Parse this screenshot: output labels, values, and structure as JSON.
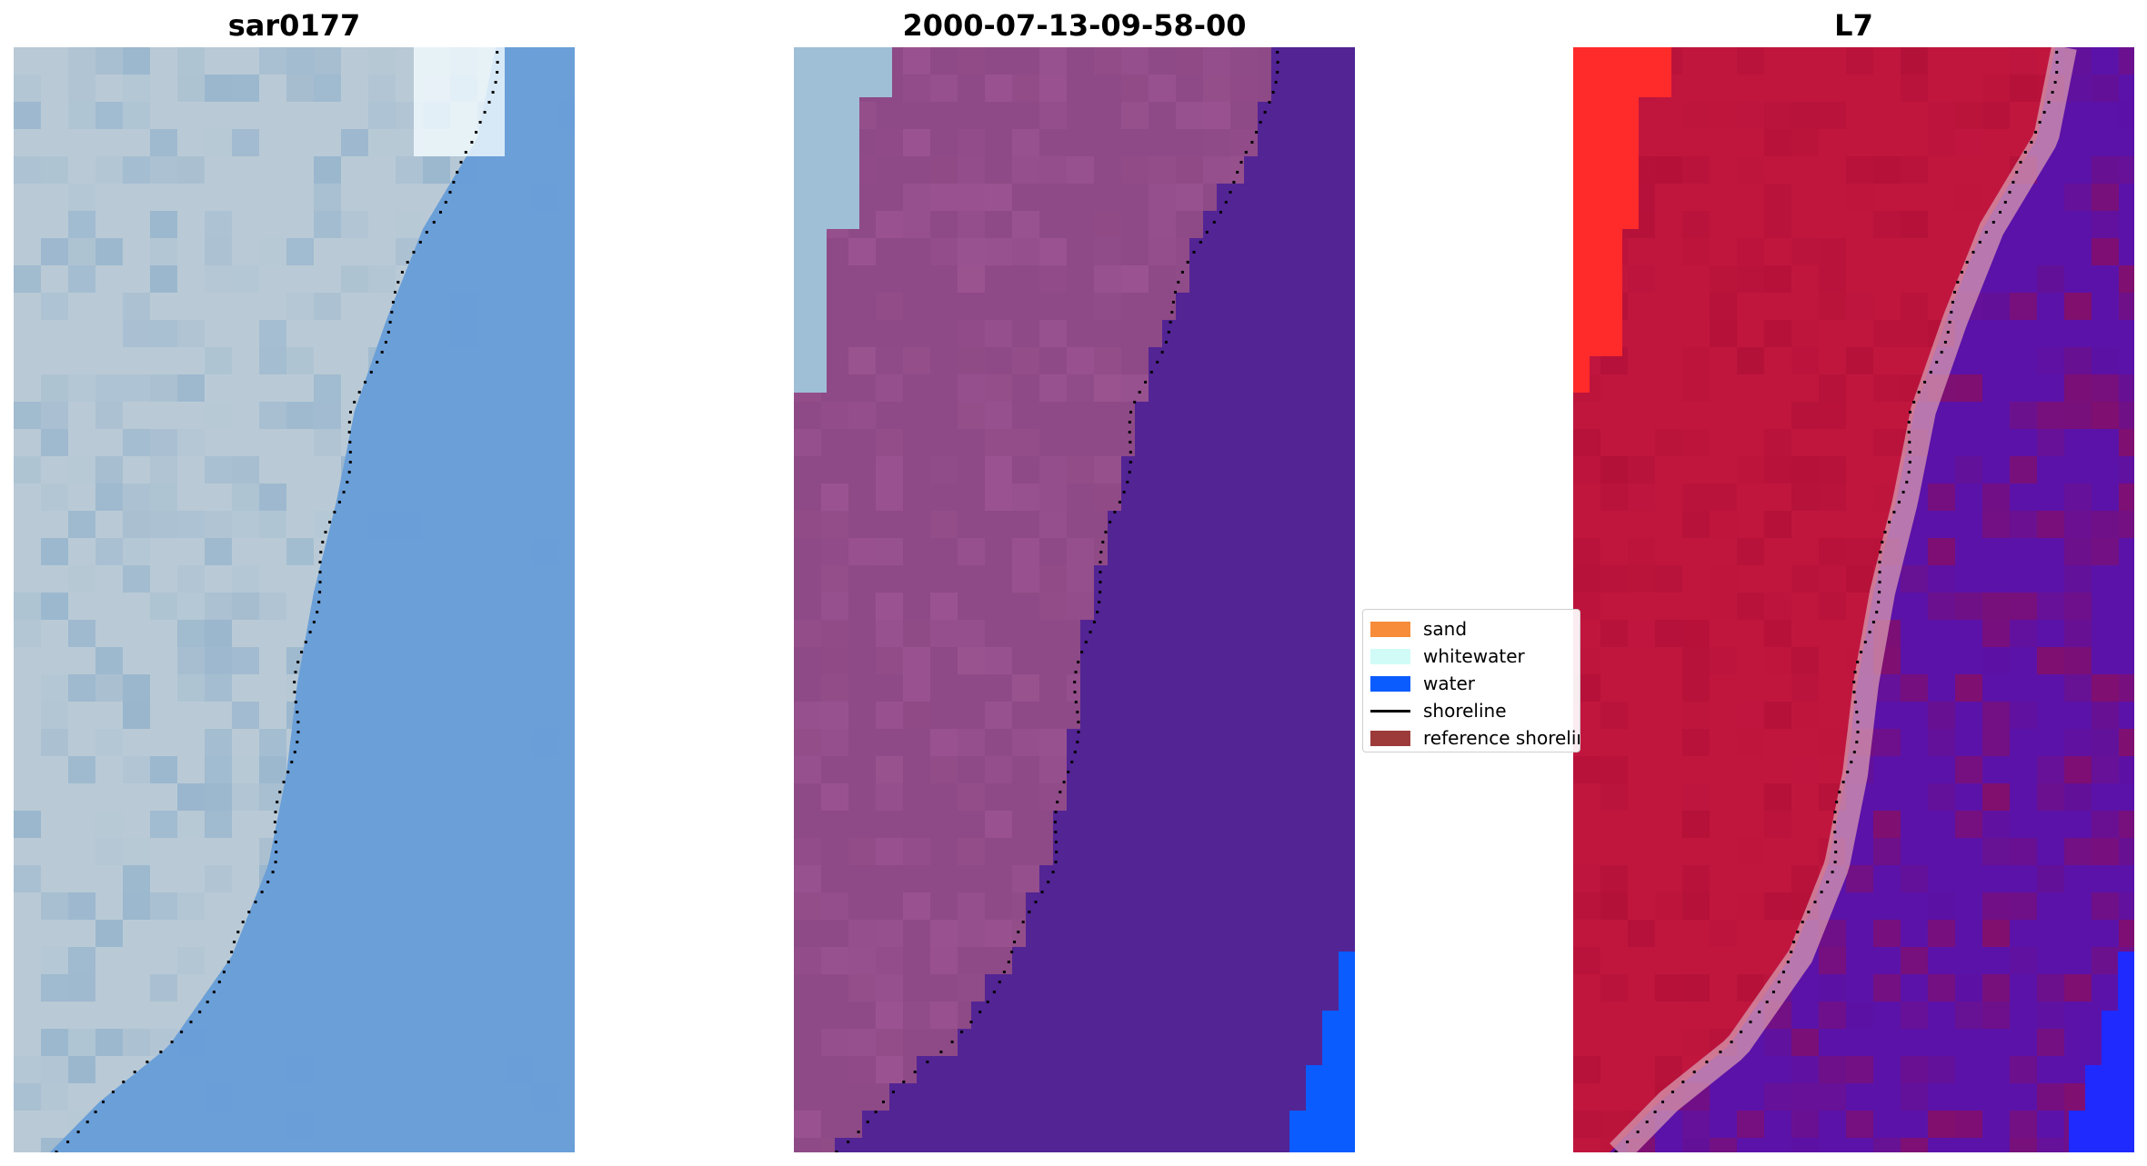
{
  "panels": [
    {
      "title": "sar0177"
    },
    {
      "title": "2000-07-13-09-58-00"
    },
    {
      "title": "L7"
    }
  ],
  "legend": {
    "items": [
      {
        "label": "sand",
        "kind": "patch",
        "color": "#f78c3a"
      },
      {
        "label": "whitewater",
        "kind": "patch",
        "color": "#d0fbf6"
      },
      {
        "label": "water",
        "kind": "patch",
        "color": "#0a5cff"
      },
      {
        "label": "shoreline",
        "kind": "line",
        "color": "#000000"
      },
      {
        "label": "reference shoreline",
        "kind": "patch",
        "color": "#9c3b3a"
      }
    ]
  },
  "colors": {
    "rgb_land": "#b9cad6",
    "rgb_sea": "#6a9ed8",
    "class_land": "#8e4a86",
    "class_sea": "#532494",
    "class_water": "#0a5cff",
    "class_whitewater": "#9fbfd6",
    "ndwi_land": "#c0163e",
    "ndwi_sea": "#5b12a8",
    "ndwi_bright": "#ff2a2a",
    "ndwi_water": "#1f2aff"
  }
}
